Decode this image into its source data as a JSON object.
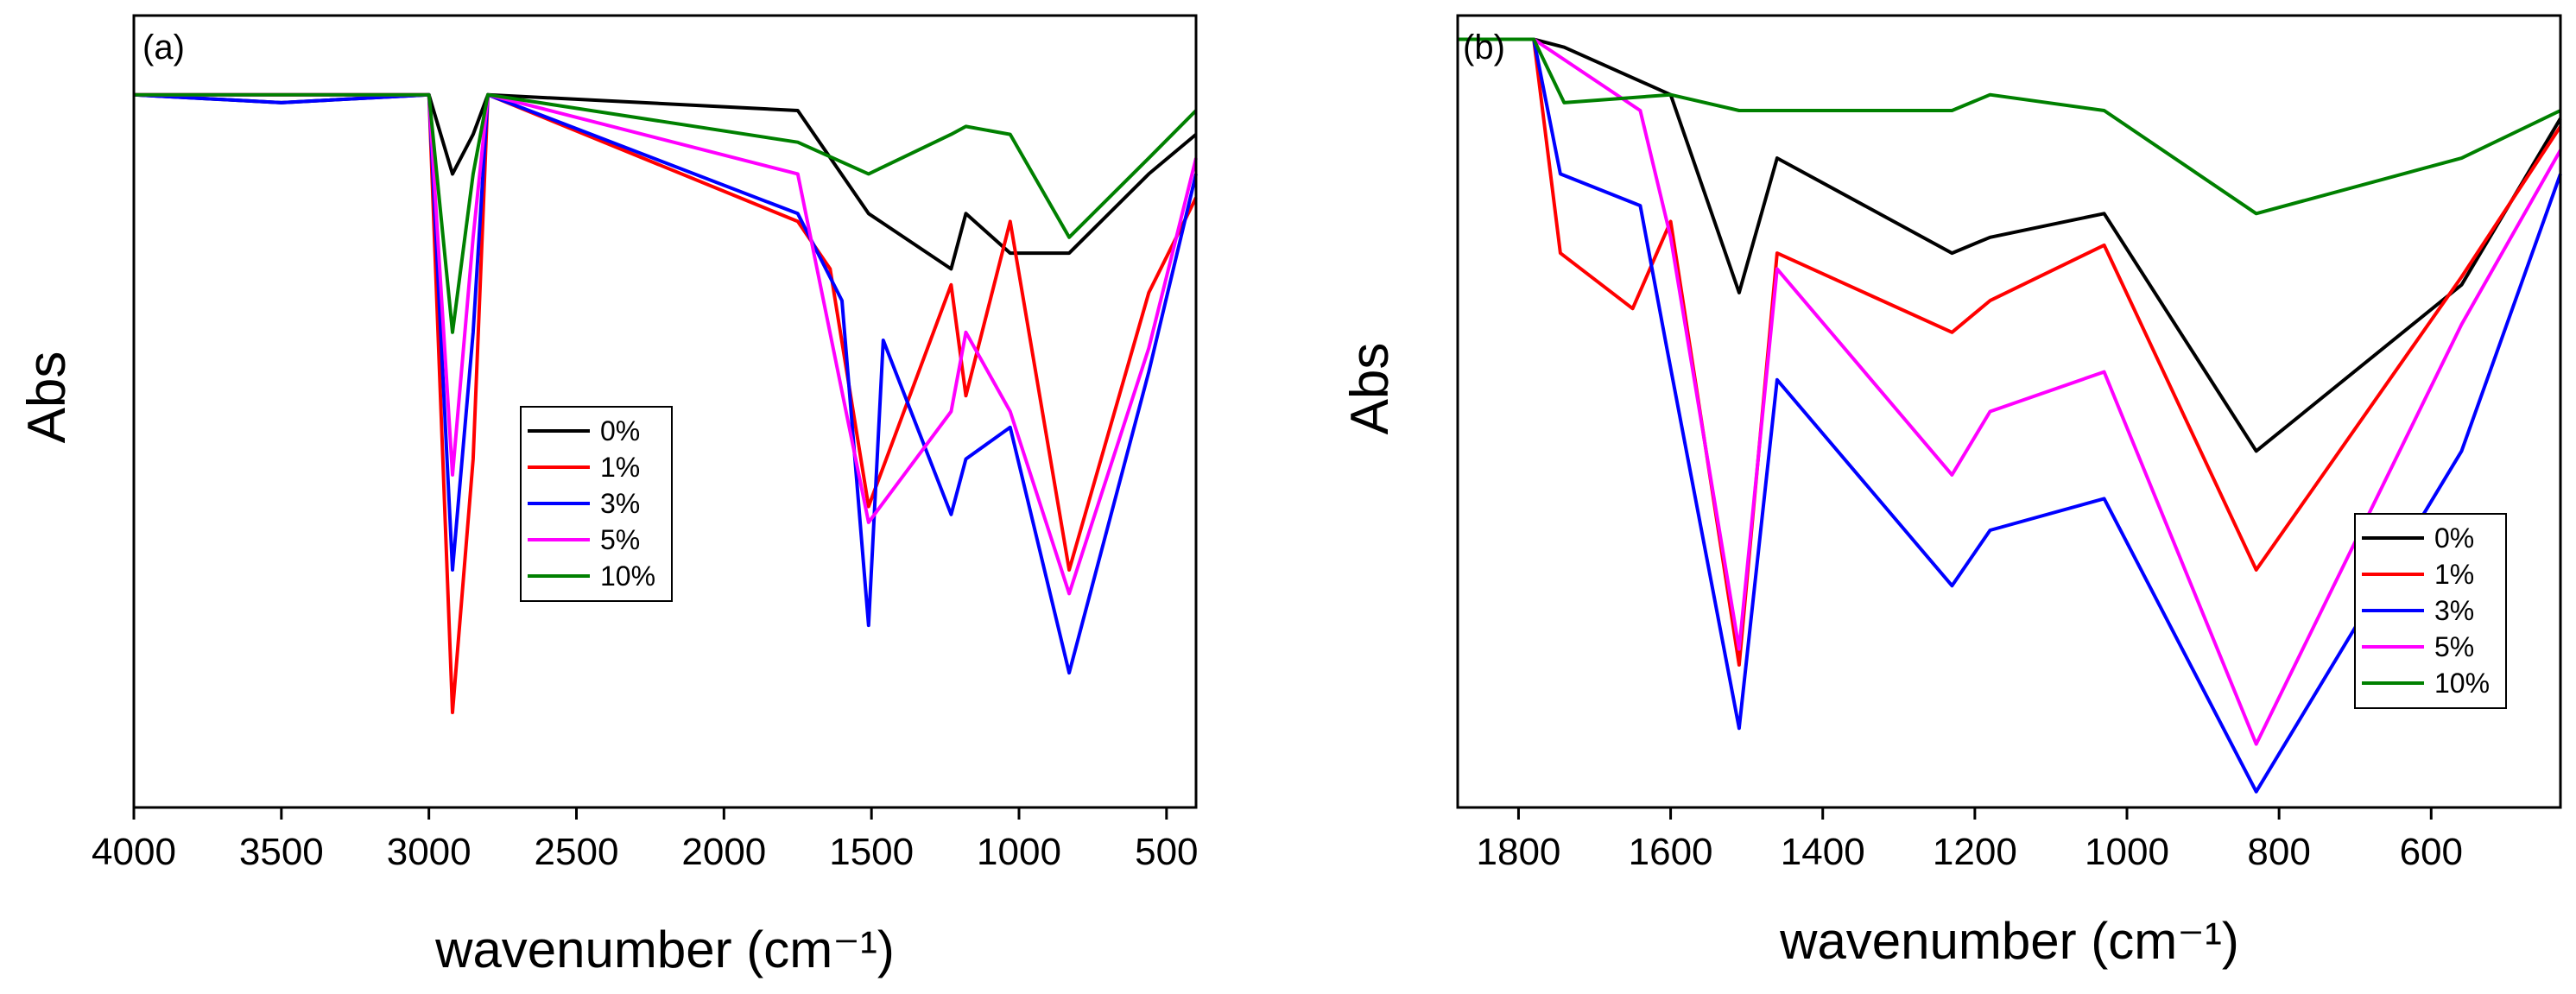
{
  "chart_data": [
    {
      "type": "line",
      "panel_label": "(a)",
      "xlabel": "wavenumber (cm⁻¹)",
      "ylabel": "Abs",
      "xlim": [
        4000,
        400
      ],
      "ylim": [
        0,
        1
      ],
      "xticks": [
        4000,
        3500,
        3000,
        2500,
        2000,
        1500,
        1000,
        500
      ],
      "xtick_labels": [
        "4000",
        "3500",
        "3000",
        "2500",
        "2000",
        "1500",
        "1000",
        "500"
      ],
      "legend_position": "center",
      "series": [
        {
          "name": "0%",
          "color": "#000000",
          "points": [
            [
              4000,
              0.9
            ],
            [
              3500,
              0.89
            ],
            [
              3000,
              0.9
            ],
            [
              2920,
              0.8
            ],
            [
              2850,
              0.85
            ],
            [
              2800,
              0.9
            ],
            [
              1750,
              0.88
            ],
            [
              1510,
              0.75
            ],
            [
              1230,
              0.68
            ],
            [
              1180,
              0.75
            ],
            [
              1030,
              0.7
            ],
            [
              830,
              0.7
            ],
            [
              560,
              0.8
            ],
            [
              400,
              0.85
            ]
          ]
        },
        {
          "name": "1%",
          "color": "#ff0000",
          "points": [
            [
              4000,
              0.9
            ],
            [
              3500,
              0.9
            ],
            [
              3000,
              0.9
            ],
            [
              2920,
              0.12
            ],
            [
              2850,
              0.44
            ],
            [
              2800,
              0.9
            ],
            [
              1750,
              0.74
            ],
            [
              1640,
              0.68
            ],
            [
              1510,
              0.38
            ],
            [
              1230,
              0.66
            ],
            [
              1180,
              0.52
            ],
            [
              1030,
              0.74
            ],
            [
              830,
              0.3
            ],
            [
              560,
              0.65
            ],
            [
              400,
              0.77
            ]
          ]
        },
        {
          "name": "3%",
          "color": "#0000ff",
          "points": [
            [
              4000,
              0.9
            ],
            [
              3500,
              0.89
            ],
            [
              3000,
              0.9
            ],
            [
              2920,
              0.3
            ],
            [
              2850,
              0.6
            ],
            [
              2800,
              0.9
            ],
            [
              1750,
              0.75
            ],
            [
              1600,
              0.64
            ],
            [
              1510,
              0.23
            ],
            [
              1460,
              0.59
            ],
            [
              1230,
              0.37
            ],
            [
              1180,
              0.44
            ],
            [
              1030,
              0.48
            ],
            [
              830,
              0.17
            ],
            [
              560,
              0.55
            ],
            [
              400,
              0.8
            ]
          ]
        },
        {
          "name": "5%",
          "color": "#ff00ff",
          "points": [
            [
              4000,
              0.9
            ],
            [
              3500,
              0.9
            ],
            [
              3000,
              0.9
            ],
            [
              2920,
              0.42
            ],
            [
              2850,
              0.72
            ],
            [
              2800,
              0.9
            ],
            [
              1750,
              0.8
            ],
            [
              1510,
              0.36
            ],
            [
              1230,
              0.5
            ],
            [
              1180,
              0.6
            ],
            [
              1030,
              0.5
            ],
            [
              830,
              0.27
            ],
            [
              560,
              0.58
            ],
            [
              400,
              0.82
            ]
          ]
        },
        {
          "name": "10%",
          "color": "#008000",
          "points": [
            [
              4000,
              0.9
            ],
            [
              3500,
              0.9
            ],
            [
              3000,
              0.9
            ],
            [
              2920,
              0.6
            ],
            [
              2850,
              0.8
            ],
            [
              2800,
              0.9
            ],
            [
              1750,
              0.84
            ],
            [
              1510,
              0.8
            ],
            [
              1230,
              0.85
            ],
            [
              1180,
              0.86
            ],
            [
              1030,
              0.85
            ],
            [
              830,
              0.72
            ],
            [
              560,
              0.82
            ],
            [
              400,
              0.88
            ]
          ]
        }
      ]
    },
    {
      "type": "line",
      "panel_label": "(b)",
      "xlabel": "wavenumber (cm⁻¹)",
      "ylabel": "Abs",
      "xlim": [
        1880,
        430
      ],
      "ylim": [
        0,
        1
      ],
      "xticks": [
        1800,
        1600,
        1400,
        1200,
        1000,
        800,
        600
      ],
      "xtick_labels": [
        "1800",
        "1600",
        "1400",
        "1200",
        "1000",
        "800",
        "600"
      ],
      "legend_position": "lower right",
      "series": [
        {
          "name": "0%",
          "color": "#000000",
          "points": [
            [
              1880,
              0.97
            ],
            [
              1780,
              0.97
            ],
            [
              1740,
              0.96
            ],
            [
              1600,
              0.9
            ],
            [
              1510,
              0.65
            ],
            [
              1460,
              0.82
            ],
            [
              1230,
              0.7
            ],
            [
              1180,
              0.72
            ],
            [
              1030,
              0.75
            ],
            [
              830,
              0.45
            ],
            [
              560,
              0.66
            ],
            [
              430,
              0.87
            ]
          ]
        },
        {
          "name": "1%",
          "color": "#ff0000",
          "points": [
            [
              1880,
              0.97
            ],
            [
              1780,
              0.97
            ],
            [
              1745,
              0.7
            ],
            [
              1650,
              0.63
            ],
            [
              1600,
              0.74
            ],
            [
              1510,
              0.18
            ],
            [
              1460,
              0.7
            ],
            [
              1230,
              0.6
            ],
            [
              1180,
              0.64
            ],
            [
              1030,
              0.71
            ],
            [
              830,
              0.3
            ],
            [
              560,
              0.67
            ],
            [
              430,
              0.86
            ]
          ]
        },
        {
          "name": "3%",
          "color": "#0000ff",
          "points": [
            [
              1880,
              0.97
            ],
            [
              1780,
              0.97
            ],
            [
              1745,
              0.8
            ],
            [
              1640,
              0.76
            ],
            [
              1605,
              0.58
            ],
            [
              1510,
              0.1
            ],
            [
              1460,
              0.54
            ],
            [
              1230,
              0.28
            ],
            [
              1180,
              0.35
            ],
            [
              1030,
              0.39
            ],
            [
              830,
              0.02
            ],
            [
              560,
              0.45
            ],
            [
              430,
              0.8
            ]
          ]
        },
        {
          "name": "5%",
          "color": "#ff00ff",
          "points": [
            [
              1880,
              0.97
            ],
            [
              1780,
              0.97
            ],
            [
              1640,
              0.88
            ],
            [
              1600,
              0.72
            ],
            [
              1510,
              0.2
            ],
            [
              1460,
              0.68
            ],
            [
              1230,
              0.42
            ],
            [
              1180,
              0.5
            ],
            [
              1030,
              0.55
            ],
            [
              830,
              0.08
            ],
            [
              560,
              0.61
            ],
            [
              430,
              0.83
            ]
          ]
        },
        {
          "name": "10%",
          "color": "#008000",
          "points": [
            [
              1880,
              0.97
            ],
            [
              1780,
              0.97
            ],
            [
              1740,
              0.89
            ],
            [
              1600,
              0.9
            ],
            [
              1510,
              0.88
            ],
            [
              1230,
              0.88
            ],
            [
              1180,
              0.9
            ],
            [
              1030,
              0.88
            ],
            [
              830,
              0.75
            ],
            [
              560,
              0.82
            ],
            [
              430,
              0.88
            ]
          ]
        }
      ]
    }
  ]
}
